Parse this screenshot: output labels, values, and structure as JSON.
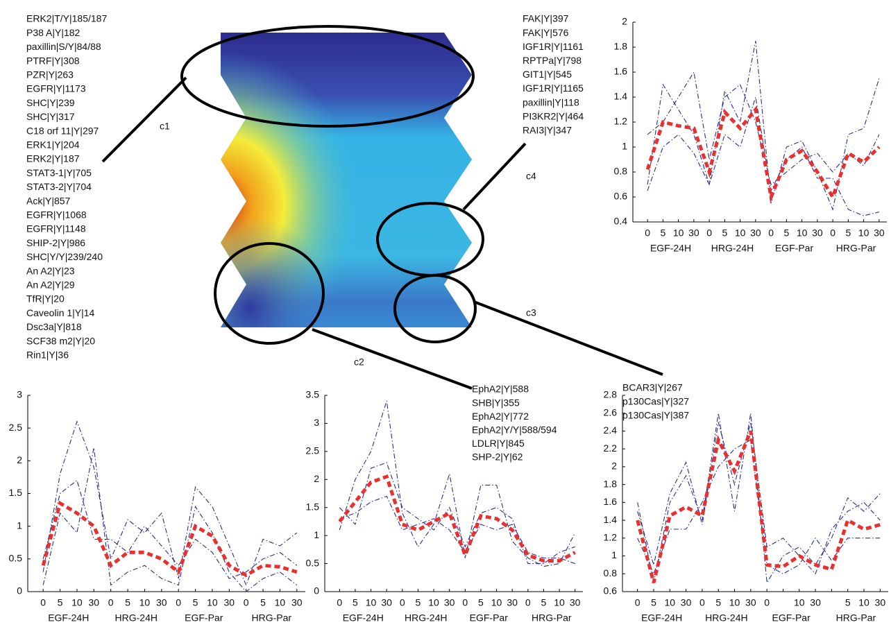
{
  "clusters": [
    {
      "label": "c1",
      "members": [
        "ERK2|T/Y|185/187",
        "P38 A|Y|182",
        "paxillin|S/Y|84/88",
        "PTRF|Y|308",
        "PZR|Y|263",
        "EGFR|Y|1173",
        "SHC|Y|239",
        "SHC|Y|317",
        "C18 orf 11|Y|297",
        "ERK1|Y|204",
        "ERK2|Y|187",
        "STAT3-1|Y|705",
        "STAT3-2|Y|704",
        "Ack|Y|857",
        "EGFR|Y|1068",
        "EGFR|Y|1148",
        "SHIP-2|Y|986",
        "SHC|Y/Y|239/240",
        "An A2|Y|23",
        "An A2|Y|29",
        "TfR|Y|20",
        "Caveolin 1|Y|14",
        "Dsc3a|Y|818",
        "SCF38 m2|Y|20",
        "Rin1|Y|36"
      ]
    },
    {
      "label": "c4",
      "members": [
        "FAK|Y|397",
        "FAK|Y|576",
        "IGF1R|Y|1161",
        "RPTPa|Y|798",
        "GIT1|Y|545",
        "IGF1R|Y|1165",
        "paxillin|Y|118",
        "PI3KR2|Y|464",
        "RAI3|Y|347"
      ]
    },
    {
      "label": "c2",
      "members": [
        "EphA2|Y|588",
        "SHB|Y|355",
        "EphA2|Y|772",
        "EphA2|Y/Y|588/594",
        "LDLR|Y|845",
        "SHP-2|Y|62"
      ]
    },
    {
      "label": "c3",
      "members": [
        "BCAR3|Y|267",
        "p130Cas|Y|327",
        "p130Cas|Y|387"
      ]
    }
  ],
  "chart_data": [
    {
      "type": "line",
      "categories": [
        "0",
        "5",
        "10",
        "30",
        "0",
        "5",
        "10",
        "30",
        "0",
        "5",
        "10",
        "30",
        "0",
        "5",
        "10",
        "30"
      ],
      "groups": [
        "EGF-24H",
        "HRG-24H",
        "EGF-Par",
        "HRG-Par"
      ],
      "ylim": [
        0.4,
        2
      ],
      "yticks": [
        0.4,
        0.6,
        0.8,
        1,
        1.2,
        1.4,
        1.6,
        1.8,
        2
      ],
      "series": [
        {
          "color": "#2b2b8c",
          "style": "dashdot",
          "values": [
            0.7,
            1.5,
            1.3,
            1.1,
            0.7,
            1.45,
            1.2,
            1.85,
            0.55,
            1.0,
            1.05,
            0.8,
            0.5,
            1.1,
            1.15,
            1.55
          ]
        },
        {
          "color": "#2b2b8c",
          "style": "dashdot",
          "values": [
            1.1,
            1.2,
            1.4,
            1.6,
            0.9,
            1.4,
            1.5,
            1.2,
            0.7,
            0.8,
            0.9,
            0.95,
            0.8,
            0.95,
            0.85,
            1.1
          ]
        },
        {
          "color": "#2b2b8c",
          "style": "dashdot",
          "values": [
            0.65,
            1.0,
            1.1,
            0.95,
            0.7,
            1.1,
            1.0,
            1.4,
            0.65,
            0.9,
            1.0,
            0.75,
            0.75,
            0.5,
            0.45,
            0.48
          ]
        },
        {
          "color": "#e8312f",
          "style": "dashed",
          "values": [
            0.82,
            1.2,
            1.17,
            1.15,
            0.8,
            1.28,
            1.15,
            1.3,
            0.6,
            0.9,
            0.97,
            0.8,
            0.6,
            0.95,
            0.88,
            1.0
          ]
        }
      ]
    },
    {
      "type": "line",
      "categories": [
        "0",
        "5",
        "10",
        "30",
        "0",
        "5",
        "10",
        "30",
        "0",
        "5",
        "10",
        "30",
        "0",
        "5",
        "10",
        "30"
      ],
      "groups": [
        "EGF-24H",
        "HRG-24H",
        "EGF-Par",
        "HRG-Par"
      ],
      "ylim": [
        0,
        3
      ],
      "yticks": [
        0,
        0.5,
        1,
        1.5,
        2,
        2.5,
        3
      ],
      "series": [
        {
          "color": "#2b2b8c",
          "style": "dashdot",
          "values": [
            0.3,
            1.8,
            2.6,
            1.9,
            0.5,
            1.1,
            0.9,
            1.2,
            0.2,
            1.6,
            1.3,
            0.7,
            0.1,
            0.8,
            0.7,
            0.9
          ]
        },
        {
          "color": "#2b2b8c",
          "style": "dashdot",
          "values": [
            0.1,
            1.2,
            0.9,
            2.2,
            0.1,
            0.3,
            0.4,
            0.2,
            0.1,
            1.3,
            0.9,
            0.3,
            0.0,
            0.2,
            0.3,
            0.1
          ]
        },
        {
          "color": "#2b2b8c",
          "style": "dashdot",
          "values": [
            0.5,
            1.5,
            1.7,
            0.8,
            0.8,
            0.6,
            1.0,
            0.7,
            0.4,
            0.8,
            0.6,
            0.2,
            0.3,
            0.5,
            0.6,
            0.4
          ]
        },
        {
          "color": "#e8312f",
          "style": "dashed",
          "values": [
            0.4,
            1.35,
            1.2,
            1.0,
            0.4,
            0.6,
            0.6,
            0.5,
            0.3,
            1.0,
            0.85,
            0.4,
            0.25,
            0.4,
            0.38,
            0.3
          ]
        }
      ]
    },
    {
      "type": "line",
      "categories": [
        "0",
        "5",
        "10",
        "30",
        "0",
        "5",
        "10",
        "30",
        "0",
        "5",
        "10",
        "30",
        "0",
        "5",
        "10",
        "30"
      ],
      "groups": [
        "EGF-24H",
        "HRG-24H",
        "EGF-Par",
        "HRG-Par"
      ],
      "ylim": [
        0,
        3.5
      ],
      "yticks": [
        0,
        0.5,
        1,
        1.5,
        2,
        2.5,
        3,
        3.5
      ],
      "series": [
        {
          "color": "#2b2b8c",
          "style": "dashdot",
          "values": [
            1.1,
            2.0,
            2.5,
            3.4,
            1.4,
            0.8,
            1.2,
            2.1,
            0.6,
            1.9,
            1.9,
            0.9,
            0.6,
            0.45,
            0.5,
            1.05
          ]
        },
        {
          "color": "#2b2b8c",
          "style": "dashdot",
          "values": [
            1.3,
            1.4,
            1.6,
            1.7,
            1.1,
            1.2,
            1.3,
            1.1,
            0.7,
            1.2,
            1.1,
            1.2,
            0.7,
            0.6,
            0.6,
            0.5
          ]
        },
        {
          "color": "#2b2b8c",
          "style": "dashdot",
          "values": [
            1.5,
            1.2,
            2.2,
            2.3,
            1.5,
            1.3,
            1.1,
            1.5,
            0.8,
            1.4,
            1.5,
            1.3,
            0.5,
            0.5,
            0.7,
            0.8
          ]
        },
        {
          "color": "#e8312f",
          "style": "dashed",
          "values": [
            1.25,
            1.6,
            1.95,
            2.05,
            1.2,
            1.1,
            1.25,
            1.4,
            0.65,
            1.35,
            1.3,
            1.1,
            0.65,
            0.55,
            0.55,
            0.7
          ]
        }
      ]
    },
    {
      "type": "line",
      "categories": [
        "0",
        "5",
        "10",
        "30",
        "0",
        "5",
        "10",
        "30",
        "0",
        null,
        "10",
        "30",
        null,
        "5",
        "10",
        "30"
      ],
      "groups": [
        "EGF-24H",
        "HRG-24H",
        "EGF-Par",
        "HRG-Par"
      ],
      "ylim": [
        0.6,
        2.8
      ],
      "yticks": [
        0.6,
        0.8,
        1,
        1.2,
        1.4,
        1.6,
        1.8,
        2,
        2.2,
        2.4,
        2.6,
        2.8
      ],
      "series": [
        {
          "color": "#2b2b8c",
          "style": "dashdot",
          "values": [
            1.6,
            0.7,
            1.6,
            1.9,
            1.4,
            2.6,
            1.5,
            2.6,
            0.7,
            1.0,
            1.1,
            0.9,
            1.2,
            1.65,
            1.5,
            1.7
          ]
        },
        {
          "color": "#2b2b8c",
          "style": "dashdot",
          "values": [
            1.2,
            0.8,
            1.3,
            1.3,
            1.6,
            2.0,
            2.2,
            2.3,
            0.9,
            0.8,
            0.9,
            1.2,
            0.95,
            1.2,
            1.2,
            1.2
          ]
        },
        {
          "color": "#2b2b8c",
          "style": "dashdot",
          "values": [
            1.5,
            0.9,
            1.7,
            2.05,
            1.35,
            2.5,
            1.8,
            2.5,
            1.1,
            1.2,
            1.0,
            0.8,
            1.3,
            1.5,
            1.6,
            1.4
          ]
        },
        {
          "color": "#e8312f",
          "style": "dashed",
          "values": [
            1.4,
            0.7,
            1.45,
            1.55,
            1.45,
            2.3,
            1.95,
            2.4,
            0.9,
            0.88,
            1.0,
            0.9,
            0.85,
            1.4,
            1.3,
            1.35
          ]
        }
      ]
    }
  ]
}
